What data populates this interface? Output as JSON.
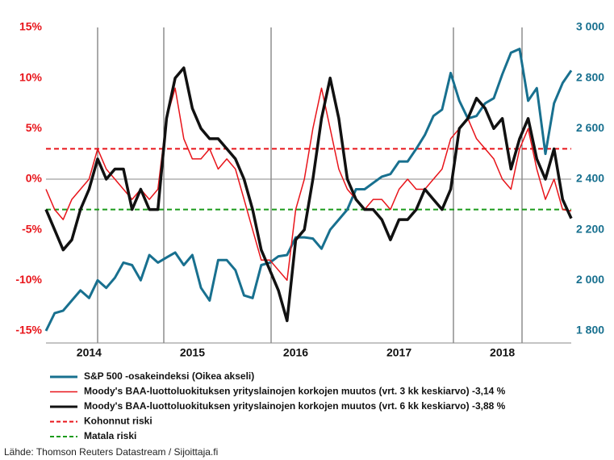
{
  "chart_data": {
    "type": "line",
    "categories": [
      null,
      null,
      null,
      null,
      null,
      "2014",
      null,
      null,
      null,
      null,
      null,
      null,
      null,
      null,
      null,
      null,
      null,
      "2015",
      null,
      null,
      null,
      null,
      null,
      null,
      null,
      null,
      null,
      null,
      null,
      "2016",
      null,
      null,
      null,
      null,
      null,
      null,
      null,
      null,
      null,
      null,
      null,
      "2017",
      null,
      null,
      null,
      null,
      null,
      null,
      null,
      null,
      null,
      null,
      null,
      "2018",
      null,
      null,
      null,
      null,
      null,
      null,
      null,
      null
    ],
    "series": [
      {
        "name": "S&P 500 -osakeindeksi (Oikea akseli)",
        "color": "#18708f",
        "line_width": 3,
        "axis": "y2",
        "values": [
          1800,
          1870,
          1880,
          1920,
          1960,
          1930,
          2000,
          1970,
          2010,
          2070,
          2060,
          2000,
          2100,
          2070,
          2090,
          2110,
          2060,
          2100,
          1970,
          1920,
          2080,
          2080,
          2040,
          1940,
          1930,
          2060,
          2070,
          2095,
          2100,
          2170,
          2170,
          2165,
          2125,
          2200,
          2240,
          2280,
          2360,
          2360,
          2385,
          2410,
          2420,
          2470,
          2470,
          2520,
          2575,
          2650,
          2675,
          2820,
          2710,
          2640,
          2650,
          2700,
          2720,
          2815,
          2900,
          2915,
          2710,
          2760,
          2500,
          2700,
          2780,
          2830
        ]
      },
      {
        "name": "Moody's BAA-luottoluokituksen yrityslainojen korkojen muutos (vrt. 3 kk keskiarvo) -3,14 %",
        "color": "#e8141a",
        "line_width": 1.5,
        "values": [
          -1,
          -3,
          -4,
          -2,
          -1,
          0,
          3,
          1,
          0,
          -1,
          -2,
          -1,
          -2,
          -1,
          6,
          9,
          4,
          2,
          2,
          3,
          1,
          2,
          1,
          -2,
          -5,
          -8,
          -8,
          -9,
          -10,
          -3,
          0,
          5,
          9,
          5,
          1,
          -1,
          -2,
          -3,
          -2,
          -2,
          -3,
          -1,
          0,
          -1,
          -1,
          0,
          1,
          4,
          5,
          6,
          4,
          3,
          2,
          0,
          -1,
          3,
          5,
          1,
          -2,
          0,
          -3,
          -3.14
        ]
      },
      {
        "name": "Moody's BAA-luottoluokituksen yrityslainojen korkojen muutos (vrt. 6 kk keskiarvo) -3,88 %",
        "color": "#111111",
        "line_width": 3.5,
        "values": [
          -3,
          -5,
          -7,
          -6,
          -3,
          -1,
          2,
          0,
          1,
          1,
          -3,
          -1,
          -3,
          -3,
          6,
          10,
          11,
          7,
          5,
          4,
          4,
          3,
          2,
          0,
          -3,
          -7,
          -9,
          -11,
          -14,
          -6,
          -5,
          0,
          6,
          10,
          6,
          0,
          -2,
          -3,
          -3,
          -4,
          -6,
          -4,
          -4,
          -3,
          -1,
          -2,
          -3,
          -1,
          5,
          6,
          8,
          7,
          5,
          6,
          1,
          4,
          6,
          2,
          0,
          3,
          -2,
          -3.88
        ]
      }
    ],
    "reference_lines": [
      {
        "name": "Kohonnut riski",
        "color": "#e8141a",
        "value": 3
      },
      {
        "name": "Matala riski",
        "color": "#1a9a1a",
        "value": -3
      }
    ],
    "ylim": [
      -15,
      15
    ],
    "yticks": [
      {
        "value": -15,
        "label": "-15%"
      },
      {
        "value": -10,
        "label": "-10%"
      },
      {
        "value": -5,
        "label": "-5%"
      },
      {
        "value": 0,
        "label": "0%"
      },
      {
        "value": 5,
        "label": "5%"
      },
      {
        "value": 10,
        "label": "10%"
      },
      {
        "value": 15,
        "label": "15%"
      }
    ],
    "y2lim": [
      1800,
      3000
    ],
    "y2ticks": [
      {
        "value": 1800,
        "label": "1 800"
      },
      {
        "value": 2000,
        "label": "2 000"
      },
      {
        "value": 2200,
        "label": "2 200"
      },
      {
        "value": 2400,
        "label": "2 400"
      },
      {
        "value": 2600,
        "label": "2 600"
      },
      {
        "value": 2800,
        "label": "2 800"
      },
      {
        "value": 3000,
        "label": "3 000"
      }
    ],
    "source": "Lähde: Thomson Reuters Datastream / Sijoittaja.fi"
  }
}
